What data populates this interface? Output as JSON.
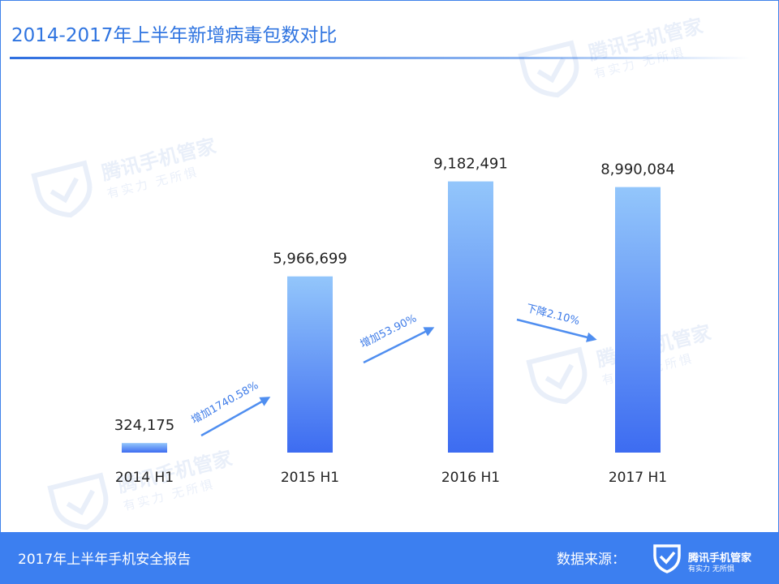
{
  "header": {
    "title": "2014-2017年上半年新增病毒包数对比"
  },
  "chart_data": {
    "type": "bar",
    "title": "2014-2017年上半年新增病毒包数对比",
    "categories": [
      "2014 H1",
      "2015 H1",
      "2016 H1",
      "2017 H1"
    ],
    "values": [
      324175,
      5966699,
      9182491,
      8990084
    ],
    "value_labels": [
      "324,175",
      "5,966,699",
      "9,182,491",
      "8,990,084"
    ],
    "annotations": [
      {
        "from": "2014 H1",
        "to": "2015 H1",
        "text": "增加1740.58%",
        "direction": "up"
      },
      {
        "from": "2015 H1",
        "to": "2016 H1",
        "text": "增加53.90%",
        "direction": "up"
      },
      {
        "from": "2016 H1",
        "to": "2017 H1",
        "text": "下降2.10%",
        "direction": "down"
      }
    ],
    "ylim": [
      0,
      9200000
    ],
    "grid": false,
    "legend": "none",
    "colors": {
      "bar_top": "#93c6fb",
      "bar_bottom": "#3d6cf1",
      "arrow": "#4f8ef0",
      "label": "#222222"
    }
  },
  "watermark": {
    "name": "腾讯手机管家",
    "slogan": "有实力 无所惧"
  },
  "footer": {
    "report_title": "2017年上半年手机安全报告",
    "source_label": "数据来源：",
    "logo_name": "腾讯手机管家",
    "logo_slogan": "有实力  无所惧",
    "logo_icon": "shield-check-icon"
  },
  "colors": {
    "accent": "#3c7ff0",
    "title_text": "#2f74e0"
  }
}
